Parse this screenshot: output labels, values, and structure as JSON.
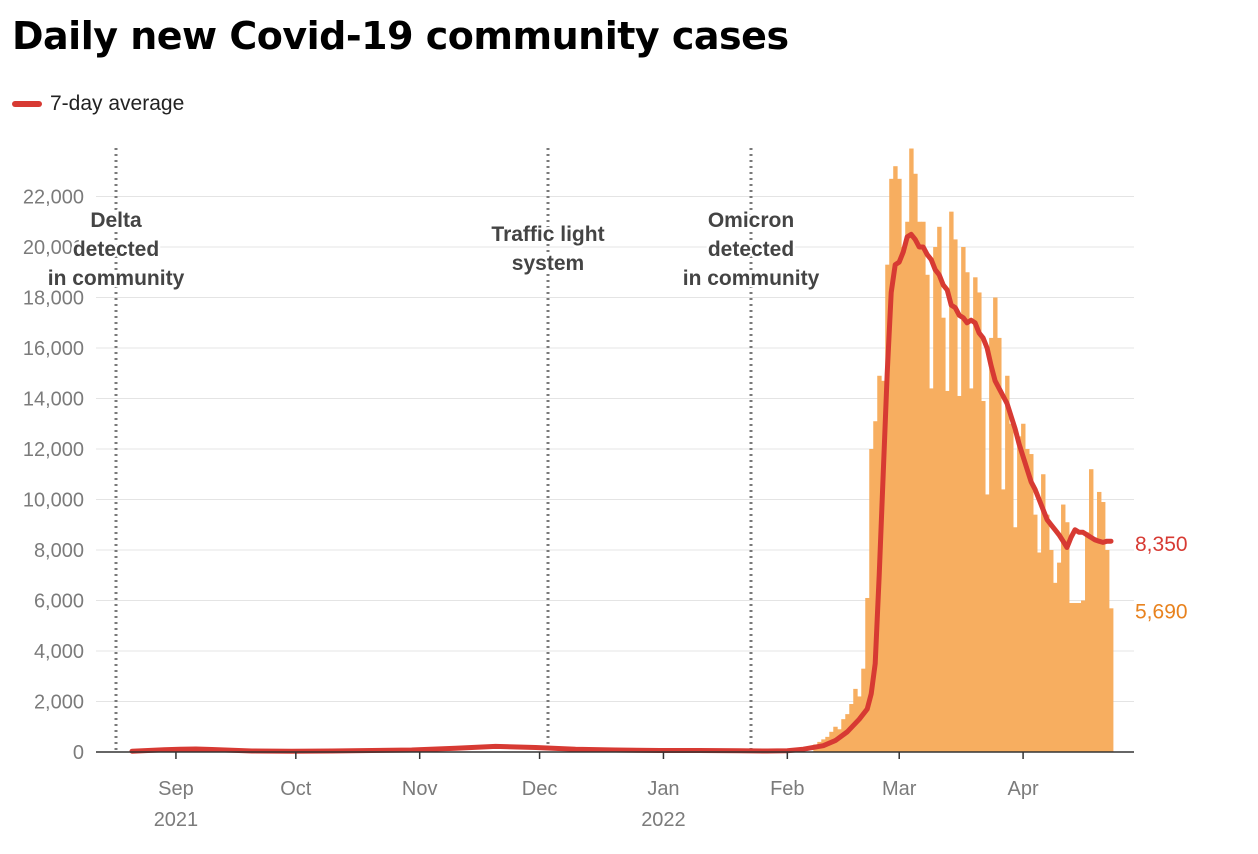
{
  "chart_data": {
    "type": "bar",
    "title": "Daily new Covid-19 community cases",
    "legend": {
      "label": "7-day average",
      "color": "#d73a33",
      "placement": "top-left"
    },
    "colors": {
      "bars": "#f7ae60",
      "line": "#d73a33",
      "grid": "#e4e4e4",
      "events": "#7a7a7a"
    },
    "x_range": [
      "2021-08-17",
      "2022-04-24"
    ],
    "ylim": [
      0,
      24000
    ],
    "y_ticks": [
      {
        "value": 0,
        "label": "0"
      },
      {
        "value": 2000,
        "label": "2,000"
      },
      {
        "value": 4000,
        "label": "4,000"
      },
      {
        "value": 6000,
        "label": "6,000"
      },
      {
        "value": 8000,
        "label": "8,000"
      },
      {
        "value": 10000,
        "label": "10,000"
      },
      {
        "value": 12000,
        "label": "12,000"
      },
      {
        "value": 14000,
        "label": "14,000"
      },
      {
        "value": 16000,
        "label": "16,000"
      },
      {
        "value": 18000,
        "label": "18,000"
      },
      {
        "value": 20000,
        "label": "20,000"
      },
      {
        "value": 22000,
        "label": "22,000"
      }
    ],
    "x_ticks": [
      {
        "date": "2021-09-01",
        "label": "Sep",
        "sub": "2021"
      },
      {
        "date": "2021-10-01",
        "label": "Oct",
        "sub": ""
      },
      {
        "date": "2021-11-01",
        "label": "Nov",
        "sub": ""
      },
      {
        "date": "2021-12-01",
        "label": "Dec",
        "sub": ""
      },
      {
        "date": "2022-01-01",
        "label": "Jan",
        "sub": "2022"
      },
      {
        "date": "2022-02-01",
        "label": "Feb",
        "sub": ""
      },
      {
        "date": "2022-03-01",
        "label": "Mar",
        "sub": ""
      },
      {
        "date": "2022-04-01",
        "label": "Apr",
        "sub": ""
      }
    ],
    "events": [
      {
        "date": "2021-08-17",
        "lines": [
          "Delta",
          "detected",
          "in community"
        ]
      },
      {
        "date": "2021-12-03",
        "lines": [
          "Traffic light",
          "system"
        ]
      },
      {
        "date": "2022-01-23",
        "lines": [
          "Omicron",
          "detected",
          "in community"
        ]
      }
    ],
    "series": [
      {
        "name": "",
        "kind": "bar",
        "x": [
          "2022-02-08",
          "2022-02-09",
          "2022-02-10",
          "2022-02-11",
          "2022-02-12",
          "2022-02-13",
          "2022-02-14",
          "2022-02-15",
          "2022-02-16",
          "2022-02-17",
          "2022-02-18",
          "2022-02-19",
          "2022-02-20",
          "2022-02-21",
          "2022-02-22",
          "2022-02-23",
          "2022-02-24",
          "2022-02-25",
          "2022-02-26",
          "2022-02-27",
          "2022-02-28",
          "2022-03-01",
          "2022-03-02",
          "2022-03-03",
          "2022-03-04",
          "2022-03-05",
          "2022-03-06",
          "2022-03-07",
          "2022-03-08",
          "2022-03-09",
          "2022-03-10",
          "2022-03-11",
          "2022-03-12",
          "2022-03-13",
          "2022-03-14",
          "2022-03-15",
          "2022-03-16",
          "2022-03-17",
          "2022-03-18",
          "2022-03-19",
          "2022-03-20",
          "2022-03-21",
          "2022-03-22",
          "2022-03-23",
          "2022-03-24",
          "2022-03-25",
          "2022-03-26",
          "2022-03-27",
          "2022-03-28",
          "2022-03-29",
          "2022-03-30",
          "2022-03-31",
          "2022-04-01",
          "2022-04-02",
          "2022-04-03",
          "2022-04-04",
          "2022-04-05",
          "2022-04-06",
          "2022-04-07",
          "2022-04-08",
          "2022-04-09",
          "2022-04-10",
          "2022-04-11",
          "2022-04-12",
          "2022-04-13",
          "2022-04-14",
          "2022-04-15",
          "2022-04-16",
          "2022-04-17",
          "2022-04-18",
          "2022-04-19",
          "2022-04-20",
          "2022-04-21",
          "2022-04-22",
          "2022-04-23"
        ],
        "values": [
          300,
          400,
          500,
          600,
          800,
          1000,
          900,
          1300,
          1500,
          1900,
          2500,
          2200,
          3300,
          6100,
          12000,
          13100,
          14900,
          14700,
          19300,
          22700,
          23200,
          22700,
          20000,
          21000,
          23900,
          22900,
          21000,
          21000,
          18900,
          14400,
          20000,
          20800,
          17200,
          14300,
          21400,
          20300,
          14100,
          20000,
          19000,
          14400,
          18800,
          18200,
          13900,
          10200,
          16400,
          18000,
          16400,
          10400,
          14900,
          13000,
          8900,
          12500,
          13000,
          12000,
          11800,
          9400,
          7900,
          11000,
          9400,
          8000,
          6700,
          7500,
          9800,
          9100,
          5900,
          5900,
          5900,
          6000,
          8700,
          11200,
          8500,
          10300,
          9900,
          8000,
          5690
        ]
      },
      {
        "name": "7-day average",
        "kind": "line",
        "x": [
          "2021-08-21",
          "2021-08-25",
          "2021-08-29",
          "2021-09-02",
          "2021-09-06",
          "2021-09-10",
          "2021-09-15",
          "2021-09-20",
          "2021-09-30",
          "2021-10-10",
          "2021-10-20",
          "2021-10-30",
          "2021-11-10",
          "2021-11-20",
          "2021-11-30",
          "2021-12-10",
          "2021-12-20",
          "2021-12-31",
          "2022-01-10",
          "2022-01-20",
          "2022-01-27",
          "2022-02-01",
          "2022-02-05",
          "2022-02-10",
          "2022-02-13",
          "2022-02-16",
          "2022-02-19",
          "2022-02-21",
          "2022-02-22",
          "2022-02-23",
          "2022-02-24",
          "2022-02-25",
          "2022-02-26",
          "2022-02-27",
          "2022-02-28",
          "2022-03-01",
          "2022-03-02",
          "2022-03-03",
          "2022-03-04",
          "2022-03-05",
          "2022-03-06",
          "2022-03-07",
          "2022-03-08",
          "2022-03-09",
          "2022-03-10",
          "2022-03-11",
          "2022-03-12",
          "2022-03-13",
          "2022-03-14",
          "2022-03-15",
          "2022-03-16",
          "2022-03-17",
          "2022-03-18",
          "2022-03-19",
          "2022-03-20",
          "2022-03-21",
          "2022-03-22",
          "2022-03-23",
          "2022-03-24",
          "2022-03-25",
          "2022-03-26",
          "2022-03-27",
          "2022-03-28",
          "2022-03-29",
          "2022-03-30",
          "2022-03-31",
          "2022-04-01",
          "2022-04-02",
          "2022-04-03",
          "2022-04-04",
          "2022-04-05",
          "2022-04-06",
          "2022-04-07",
          "2022-04-08",
          "2022-04-09",
          "2022-04-10",
          "2022-04-11",
          "2022-04-12",
          "2022-04-13",
          "2022-04-14",
          "2022-04-15",
          "2022-04-16",
          "2022-04-17",
          "2022-04-18",
          "2022-04-19",
          "2022-04-20",
          "2022-04-21",
          "2022-04-22",
          "2022-04-23"
        ],
        "values": [
          30,
          60,
          90,
          110,
          120,
          100,
          70,
          40,
          30,
          40,
          60,
          80,
          150,
          220,
          180,
          110,
          80,
          60,
          60,
          50,
          40,
          50,
          110,
          250,
          450,
          800,
          1300,
          1700,
          2300,
          3500,
          7000,
          11000,
          15000,
          18200,
          19300,
          19400,
          19800,
          20400,
          20500,
          20300,
          20000,
          20000,
          19700,
          19500,
          19100,
          18900,
          18500,
          18300,
          17700,
          17600,
          17300,
          17200,
          17000,
          17100,
          17000,
          16600,
          16400,
          16000,
          15300,
          14700,
          14400,
          14100,
          13800,
          13300,
          12800,
          12200,
          11700,
          11200,
          10700,
          10400,
          10000,
          9600,
          9200,
          9000,
          8800,
          8600,
          8350,
          8100,
          8500,
          8800,
          8700,
          8700,
          8600,
          8500,
          8400,
          8350,
          8300,
          8350,
          8350
        ]
      }
    ],
    "end_labels": {
      "line": "8,350",
      "bar": "5,690"
    }
  }
}
